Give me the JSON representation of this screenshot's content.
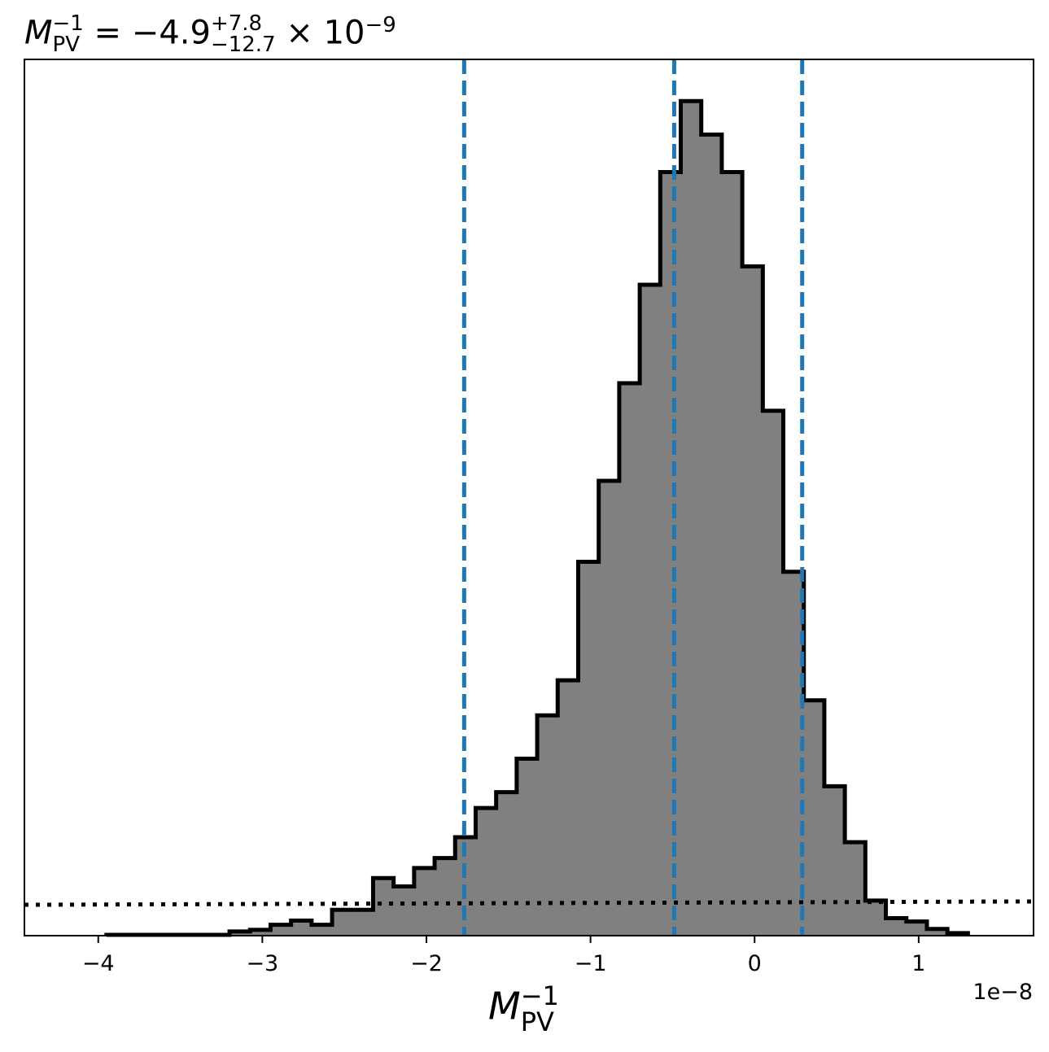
{
  "chart_data": {
    "type": "histogram",
    "title": {
      "symbol": "M",
      "sub": "PV",
      "sup": "−1",
      "equals": " = ",
      "value": "−4.9",
      "err_plus": "+7.8",
      "err_minus": "−12.7",
      "times": " × 10",
      "exponent": "−9"
    },
    "xlabel": {
      "symbol": "M",
      "sub": "PV",
      "sup": "−1"
    },
    "x_offset_label": "1e−8",
    "xlim": [
      -4.45,
      1.7
    ],
    "ylim": [
      0,
      1.05
    ],
    "x_ticks": [
      -4,
      -3,
      -2,
      -1,
      0,
      1
    ],
    "x_tick_labels": [
      "−4",
      "−3",
      "−2",
      "−1",
      "0",
      "1"
    ],
    "bin_edges": [
      -3.95,
      -3.825,
      -3.7,
      -3.575,
      -3.45,
      -3.325,
      -3.2,
      -3.075,
      -2.95,
      -2.825,
      -2.7,
      -2.575,
      -2.45,
      -2.325,
      -2.2,
      -2.075,
      -1.95,
      -1.825,
      -1.7,
      -1.575,
      -1.45,
      -1.325,
      -1.2,
      -1.075,
      -0.95,
      -0.825,
      -0.7,
      -0.575,
      -0.45,
      -0.325,
      -0.2,
      -0.075,
      0.05,
      0.175,
      0.3,
      0.425,
      0.55,
      0.675,
      0.8,
      0.925,
      1.05,
      1.175,
      1.3
    ],
    "counts": [
      0.001,
      0.001,
      0.001,
      0.001,
      0.001,
      0.001,
      0.005,
      0.007,
      0.013,
      0.018,
      0.013,
      0.031,
      0.031,
      0.069,
      0.059,
      0.081,
      0.093,
      0.118,
      0.153,
      0.172,
      0.212,
      0.264,
      0.306,
      0.448,
      0.545,
      0.662,
      0.78,
      0.915,
      1.0,
      0.96,
      0.915,
      0.802,
      0.629,
      0.436,
      0.282,
      0.179,
      0.112,
      0.042,
      0.021,
      0.017,
      0.008,
      0.003
    ],
    "hist_fill": "#808080",
    "hist_edge": "#000000",
    "quantile_lines": {
      "values": [
        -1.77,
        -0.49,
        0.29
      ],
      "color": "#1f77b4",
      "style": "dashed"
    },
    "prior_line": {
      "x": [
        -4.45,
        1.7
      ],
      "y": [
        0.037,
        0.041
      ],
      "color": "#000000",
      "style": "dotted"
    }
  }
}
